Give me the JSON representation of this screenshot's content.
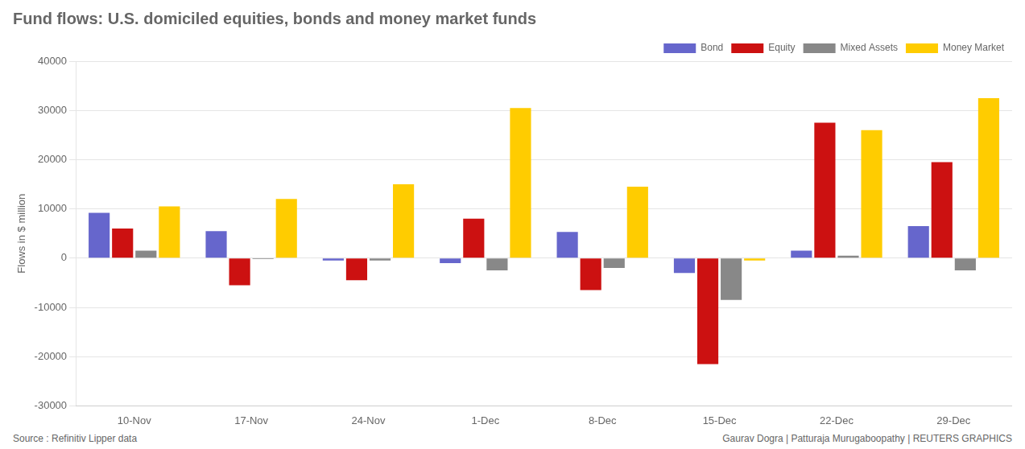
{
  "chart_data": {
    "type": "bar",
    "title": "Fund flows: U.S. domiciled equities, bonds and money market funds",
    "categories": [
      "10-Nov",
      "17-Nov",
      "24-Nov",
      "1-Dec",
      "8-Dec",
      "15-Dec",
      "22-Dec",
      "29-Dec"
    ],
    "series": [
      {
        "name": "Bond",
        "color": "#6666cc",
        "values": [
          9200,
          5500,
          -500,
          -1000,
          5300,
          -3000,
          1500,
          6500
        ]
      },
      {
        "name": "Equity",
        "color": "#cc1111",
        "values": [
          6000,
          -5500,
          -4500,
          8000,
          -6500,
          -21500,
          27500,
          19500
        ]
      },
      {
        "name": "Mixed Assets",
        "color": "#888888",
        "values": [
          1500,
          -200,
          -500,
          -2500,
          -2000,
          -8500,
          500,
          -2500
        ]
      },
      {
        "name": "Money Market",
        "color": "#ffcc00",
        "values": [
          10500,
          12000,
          15000,
          30500,
          14500,
          -500,
          26000,
          32500
        ]
      }
    ],
    "ylabel": "Flows in $ million",
    "ylim": [
      -30000,
      40000
    ],
    "yticks": [
      -30000,
      -20000,
      -10000,
      0,
      10000,
      20000,
      30000,
      40000
    ],
    "grid": true,
    "legend": "top",
    "annotations": [
      "Source : Refinitiv Lipper data",
      "Gaurav Dogra | Patturaja Murugaboopathy | REUTERS GRAPHICS"
    ]
  }
}
